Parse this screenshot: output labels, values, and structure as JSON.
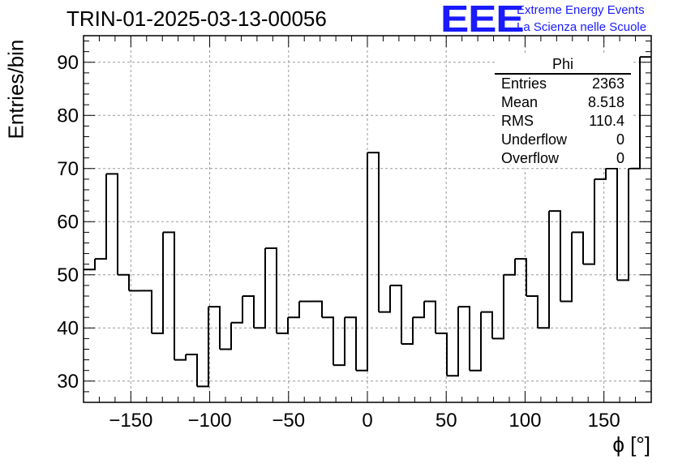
{
  "title": "TRIN-01-2025-03-13-00056",
  "logo": {
    "text": "EEE",
    "line1": "Extreme Energy Events",
    "line2": "La Scienza nelle Scuole",
    "color": "#1a1aff"
  },
  "stats": {
    "header": "Phi",
    "rows": [
      {
        "label": "Entries",
        "value": "2363"
      },
      {
        "label": "Mean",
        "value": "8.518"
      },
      {
        "label": "RMS",
        "value": "110.4"
      },
      {
        "label": "Underflow",
        "value": "0"
      },
      {
        "label": "Overflow",
        "value": "0"
      }
    ]
  },
  "chart_data": {
    "type": "histogram",
    "title": "TRIN-01-2025-03-13-00056",
    "xlabel": "ϕ [°]",
    "ylabel": "Entries/bin",
    "xlim": [
      -180,
      180
    ],
    "ylim": [
      26,
      95
    ],
    "grid": true,
    "bin_width": 7.2,
    "x_ticks": [
      -150,
      -100,
      -50,
      0,
      50,
      100,
      150
    ],
    "x_tick_labels": [
      "−150",
      "−100",
      "−50",
      "0",
      "50",
      "100",
      "150"
    ],
    "y_ticks": [
      30,
      40,
      50,
      60,
      70,
      80,
      90
    ],
    "y_tick_labels": [
      "30",
      "40",
      "50",
      "60",
      "70",
      "80",
      "90"
    ],
    "values": [
      51,
      53,
      69,
      50,
      47,
      47,
      39,
      58,
      34,
      35,
      29,
      44,
      36,
      41,
      46,
      40,
      55,
      39,
      42,
      45,
      45,
      42,
      33,
      42,
      32,
      73,
      43,
      48,
      37,
      42,
      45,
      39,
      31,
      44,
      32,
      43,
      38,
      50,
      53,
      46,
      40,
      62,
      45,
      58,
      52,
      68,
      70,
      49,
      70,
      91
    ]
  }
}
